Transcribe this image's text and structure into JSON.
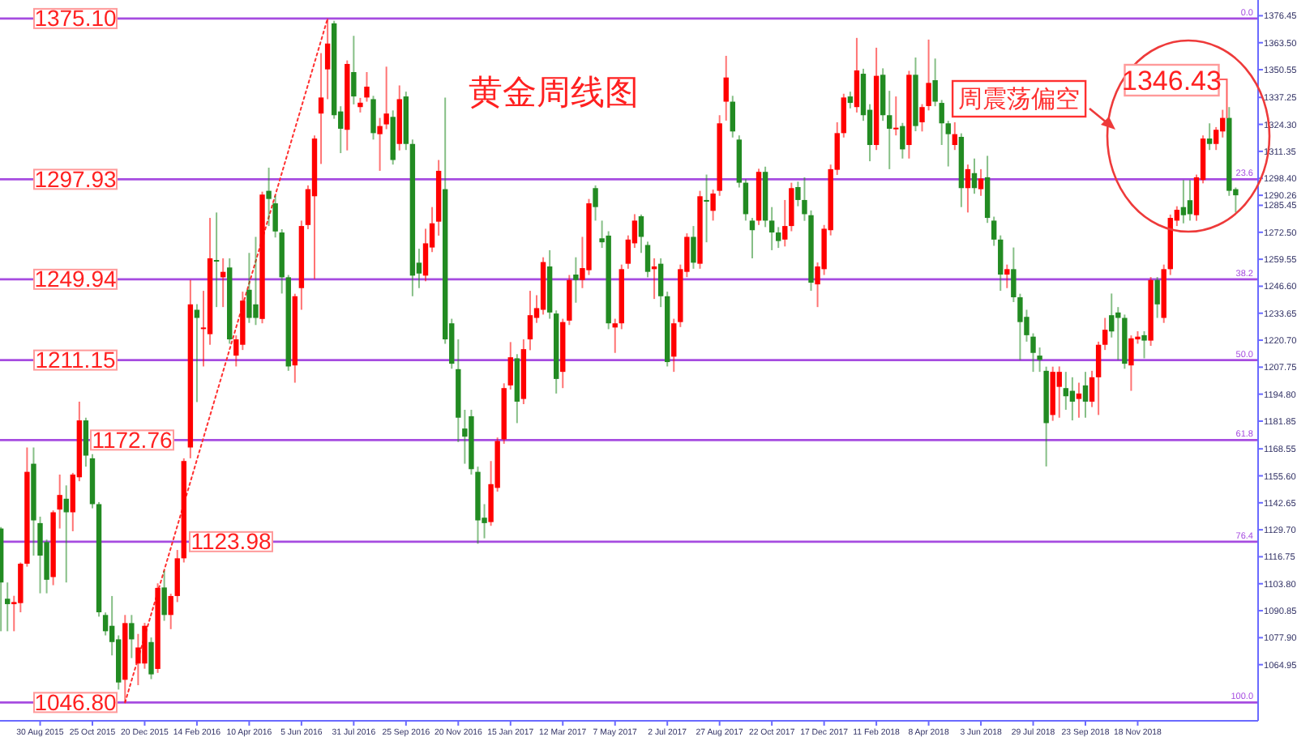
{
  "chart_data": {
    "type": "candlestick",
    "title": "黄金周线图",
    "xlim": [
      "2015-07-18",
      "2019-03-27"
    ],
    "ylim": [
      1038,
      1384
    ],
    "xticks": [
      {
        "value": "2015-08-30",
        "label": "30 Aug 2015"
      },
      {
        "value": "2015-10-25",
        "label": "25 Oct 2015"
      },
      {
        "value": "2015-12-20",
        "label": "20 Dec 2015"
      },
      {
        "value": "2016-02-14",
        "label": "14 Feb 2016"
      },
      {
        "value": "2016-04-10",
        "label": "10 Apr 2016"
      },
      {
        "value": "2016-06-05",
        "label": "5 Jun 2016"
      },
      {
        "value": "2016-07-31",
        "label": "31 Jul 2016"
      },
      {
        "value": "2016-09-25",
        "label": "25 Sep 2016"
      },
      {
        "value": "2016-11-20",
        "label": "20 Nov 2016"
      },
      {
        "value": "2017-01-15",
        "label": "15 Jan 2017"
      },
      {
        "value": "2017-03-12",
        "label": "12 Mar 2017"
      },
      {
        "value": "2017-05-07",
        "label": "7 May 2017"
      },
      {
        "value": "2017-07-02",
        "label": "2 Jul 2017"
      },
      {
        "value": "2017-08-27",
        "label": "27 Aug 2017"
      },
      {
        "value": "2017-10-22",
        "label": "22 Oct 2017"
      },
      {
        "value": "2017-12-17",
        "label": "17 Dec 2017"
      },
      {
        "value": "2018-02-11",
        "label": "11 Feb 2018"
      },
      {
        "value": "2018-04-08",
        "label": "8 Apr 2018"
      },
      {
        "value": "2018-06-03",
        "label": "3 Jun 2018"
      },
      {
        "value": "2018-07-29",
        "label": "29 Jul 2018"
      },
      {
        "value": "2018-09-23",
        "label": "23 Sep 2018"
      },
      {
        "value": "2018-11-18",
        "label": "18 Nov 2018"
      }
    ],
    "yticks": [
      {
        "value": 1376.45,
        "label": "1376.45"
      },
      {
        "value": 1363.5,
        "label": "1363.50"
      },
      {
        "value": 1350.55,
        "label": "1350.55"
      },
      {
        "value": 1337.25,
        "label": "1337.25"
      },
      {
        "value": 1324.3,
        "label": "1324.30"
      },
      {
        "value": 1311.35,
        "label": "1311.35"
      },
      {
        "value": 1298.4,
        "label": "1298.40"
      },
      {
        "value": 1290.26,
        "label": "1290.26"
      },
      {
        "value": 1285.45,
        "label": "1285.45"
      },
      {
        "value": 1272.5,
        "label": "1272.50"
      },
      {
        "value": 1259.55,
        "label": "1259.55"
      },
      {
        "value": 1246.6,
        "label": "1246.60"
      },
      {
        "value": 1233.65,
        "label": "1233.65"
      },
      {
        "value": 1220.7,
        "label": "1220.70"
      },
      {
        "value": 1207.75,
        "label": "1207.75"
      },
      {
        "value": 1194.8,
        "label": "1194.80"
      },
      {
        "value": 1181.85,
        "label": "1181.85"
      },
      {
        "value": 1168.55,
        "label": "1168.55"
      },
      {
        "value": 1155.6,
        "label": "1155.60"
      },
      {
        "value": 1142.65,
        "label": "1142.65"
      },
      {
        "value": 1129.7,
        "label": "1129.70"
      },
      {
        "value": 1116.75,
        "label": "1116.75"
      },
      {
        "value": 1103.8,
        "label": "1103.80"
      },
      {
        "value": 1090.85,
        "label": "1090.85"
      },
      {
        "value": 1077.9,
        "label": "1077.90"
      },
      {
        "value": 1064.95,
        "label": "1064.95"
      }
    ],
    "ref_lines": [
      {
        "axis": "y",
        "value": 1375.1,
        "label": "1375.10",
        "color": "#a64ce0"
      },
      {
        "axis": "y",
        "value": 1297.93,
        "label": "1297.93",
        "color": "#a64ce0"
      },
      {
        "axis": "y",
        "value": 1249.94,
        "label": "1249.94",
        "color": "#a64ce0"
      },
      {
        "axis": "y",
        "value": 1211.15,
        "label": "1211.15",
        "color": "#a64ce0"
      },
      {
        "axis": "y",
        "value": 1172.76,
        "label": "1172.76",
        "color": "#a64ce0"
      },
      {
        "axis": "y",
        "value": 1123.98,
        "label": "1123.98",
        "color": "#a64ce0"
      },
      {
        "axis": "y",
        "value": 1046.8,
        "label": "1046.80",
        "color": "#a64ce0"
      }
    ],
    "annotations": [
      "周震荡偏空",
      "1346.43",
      "0.0",
      "23.6",
      "38.2",
      "50.0",
      "61.8",
      "76.4",
      "100.0"
    ],
    "series": [
      {
        "type": "line",
        "x": [
          "2015-11-29",
          "2016-07-03"
        ],
        "values": [
          1046.8,
          1375.1
        ],
        "color": "#ff3030",
        "line_style": "dotted"
      },
      {
        "colors": [
          "#228b22",
          "#228b22",
          "#ff0000",
          "#ff0000",
          "#ff0000",
          "#228b22",
          "#228b22",
          "#228b22",
          "#ff0000",
          "#ff0000",
          "#228b22",
          "#ff0000",
          "#ff0000",
          "#228b22",
          "#228b22",
          "#228b22",
          "#228b22",
          "#228b22",
          "#228b22",
          "#ff0000",
          "#228b22",
          "#ff0000",
          "#ff0000",
          "#228b22",
          "#ff0000",
          "#228b22",
          "#ff0000",
          "#ff0000",
          "#ff0000",
          "#ff0000",
          "#228b22",
          "#ff0000",
          "#ff0000",
          "#228b22",
          "#ff0000",
          "#228b22",
          "#ff0000",
          "#ff0000",
          "#228b22",
          "#228b22",
          "#ff0000",
          "#228b22",
          "#228b22",
          "#228b22",
          "#228b22",
          "#ff0000",
          "#ff0000",
          "#ff0000",
          "#ff0000",
          "#ff0000",
          "#ff0000",
          "#228b22",
          "#228b22",
          "#ff0000",
          "#228b22",
          "#ff0000",
          "#ff0000",
          "#228b22",
          "#ff0000",
          "#ff0000",
          "#228b22",
          "#ff0000",
          "#228b22",
          "#228b22",
          "#228b22",
          "#ff0000",
          "#ff0000",
          "#ff0000",
          "#228b22",
          "#228b22",
          "#228b22",
          "#228b22",
          "#228b22",
          "#228b22",
          "#228b22",
          "#ff0000",
          "#ff0000",
          "#ff0000",
          "#ff0000",
          "#228b22",
          "#ff0000",
          "#ff0000",
          "#ff0000",
          "#ff0000",
          "#228b22",
          "#228b22",
          "#ff0000",
          "#ff0000",
          "#228b22",
          "#ff0000",
          "#ff0000",
          "#228b22",
          "#228b22",
          "#228b22",
          "#ff0000",
          "#ff0000",
          "#ff0000",
          "#ff0000",
          "#228b22",
          "#228b22",
          "#ff0000",
          "#228b22",
          "#228b22",
          "#ff0000",
          "#ff0000",
          "#ff0000",
          "#228b22",
          "#ff0000",
          "#228b22",
          "#ff0000",
          "#ff0000",
          "#ff0000",
          "#228b22",
          "#228b22",
          "#228b22",
          "#228b22",
          "#ff0000",
          "#228b22",
          "#228b22",
          "#228b22",
          "#ff0000",
          "#ff0000",
          "#228b22",
          "#228b22",
          "#228b22",
          "#ff0000",
          "#ff0000",
          "#ff0000",
          "#ff0000",
          "#ff0000",
          "#228b22",
          "#ff0000",
          "#228b22",
          "#228b22",
          "#ff0000",
          "#228b22",
          "#228b22",
          "#ff0000",
          "#228b22",
          "#ff0000",
          "#228b22",
          "#ff0000",
          "#ff0000",
          "#228b22",
          "#228b22",
          "#228b22",
          "#ff0000",
          "#228b22",
          "#ff0000",
          "#228b22",
          "#ff0000",
          "#228b22",
          "#228b22",
          "#228b22",
          "#ff0000",
          "#228b22",
          "#228b22",
          "#228b22",
          "#228b22",
          "#228b22",
          "#228b22",
          "#ff0000",
          "#ff0000",
          "#228b22",
          "#228b22",
          "#ff0000",
          "#228b22",
          "#ff0000",
          "#ff0000",
          "#ff0000",
          "#228b22",
          "#228b22",
          "#228b22",
          "#ff0000",
          "#ff0000",
          "#228b22",
          "#ff0000",
          "#228b22",
          "#ff0000",
          "#ff0000",
          "#ff0000",
          "#228b22",
          "#228b22",
          "#ff0000",
          "#ff0000",
          "#228b22",
          "#ff0000",
          "#ff0000",
          "#228b22",
          "#228b22"
        ],
        "x": [
          "2015-07-19",
          "2015-07-26",
          "2015-08-02",
          "2015-08-09",
          "2015-08-16",
          "2015-08-23",
          "2015-08-30",
          "2015-09-06",
          "2015-09-13",
          "2015-09-20",
          "2015-09-27",
          "2015-10-04",
          "2015-10-11",
          "2015-10-18",
          "2015-10-25",
          "2015-11-01",
          "2015-11-08",
          "2015-11-15",
          "2015-11-22",
          "2015-11-29",
          "2015-12-06",
          "2015-12-13",
          "2015-12-20",
          "2015-12-27",
          "2016-01-03",
          "2016-01-10",
          "2016-01-17",
          "2016-01-24",
          "2016-01-31",
          "2016-02-07",
          "2016-02-14",
          "2016-02-21",
          "2016-02-28",
          "2016-03-06",
          "2016-03-13",
          "2016-03-20",
          "2016-03-27",
          "2016-04-03",
          "2016-04-10",
          "2016-04-17",
          "2016-04-24",
          "2016-05-01",
          "2016-05-08",
          "2016-05-15",
          "2016-05-22",
          "2016-05-29",
          "2016-06-05",
          "2016-06-12",
          "2016-06-19",
          "2016-06-26",
          "2016-07-03",
          "2016-07-10",
          "2016-07-17",
          "2016-07-24",
          "2016-07-31",
          "2016-08-07",
          "2016-08-14",
          "2016-08-21",
          "2016-08-28",
          "2016-09-04",
          "2016-09-11",
          "2016-09-18",
          "2016-09-25",
          "2016-10-02",
          "2016-10-09",
          "2016-10-16",
          "2016-10-23",
          "2016-10-30",
          "2016-11-06",
          "2016-11-13",
          "2016-11-20",
          "2016-11-27",
          "2016-12-04",
          "2016-12-11",
          "2016-12-18",
          "2016-12-25",
          "2017-01-01",
          "2017-01-08",
          "2017-01-15",
          "2017-01-22",
          "2017-01-29",
          "2017-02-05",
          "2017-02-12",
          "2017-02-19",
          "2017-02-26",
          "2017-03-05",
          "2017-03-12",
          "2017-03-19",
          "2017-03-26",
          "2017-04-02",
          "2017-04-09",
          "2017-04-16",
          "2017-04-23",
          "2017-04-30",
          "2017-05-07",
          "2017-05-14",
          "2017-05-21",
          "2017-05-28",
          "2017-06-04",
          "2017-06-11",
          "2017-06-18",
          "2017-06-25",
          "2017-07-02",
          "2017-07-09",
          "2017-07-16",
          "2017-07-23",
          "2017-07-30",
          "2017-08-06",
          "2017-08-13",
          "2017-08-20",
          "2017-08-27",
          "2017-09-03",
          "2017-09-10",
          "2017-09-17",
          "2017-09-24",
          "2017-10-01",
          "2017-10-08",
          "2017-10-15",
          "2017-10-22",
          "2017-10-29",
          "2017-11-05",
          "2017-11-12",
          "2017-11-19",
          "2017-11-26",
          "2017-12-03",
          "2017-12-10",
          "2017-12-17",
          "2017-12-24",
          "2017-12-31",
          "2018-01-07",
          "2018-01-14",
          "2018-01-21",
          "2018-01-28",
          "2018-02-04",
          "2018-02-11",
          "2018-02-18",
          "2018-02-25",
          "2018-03-04",
          "2018-03-11",
          "2018-03-18",
          "2018-03-25",
          "2018-04-01",
          "2018-04-08",
          "2018-04-15",
          "2018-04-22",
          "2018-04-29",
          "2018-05-06",
          "2018-05-13",
          "2018-05-20",
          "2018-05-27",
          "2018-06-03",
          "2018-06-10",
          "2018-06-17",
          "2018-06-24",
          "2018-07-01",
          "2018-07-08",
          "2018-07-15",
          "2018-07-22",
          "2018-07-29",
          "2018-08-05",
          "2018-08-12",
          "2018-08-19",
          "2018-08-26",
          "2018-09-02",
          "2018-09-09",
          "2018-09-16",
          "2018-09-23",
          "2018-09-30",
          "2018-10-07",
          "2018-10-14",
          "2018-10-21",
          "2018-10-28",
          "2018-11-04",
          "2018-11-11",
          "2018-11-18",
          "2018-11-25",
          "2018-12-02",
          "2018-12-09",
          "2018-12-16",
          "2018-12-23",
          "2018-12-30",
          "2019-01-06",
          "2019-01-13",
          "2019-01-20",
          "2019-01-27",
          "2019-02-03",
          "2019-02-10",
          "2019-02-17",
          "2019-02-24",
          "2019-03-03"
        ],
        "ohlc": [
          [
            1130.3,
            1131,
            1081,
            1104.4
          ],
          [
            1096.6,
            1104.4,
            1081,
            1094
          ],
          [
            1094,
            1098,
            1081,
            1095
          ],
          [
            1094.5,
            1114,
            1090.1,
            1113.4
          ],
          [
            1113.4,
            1169.2,
            1112,
            1157.5
          ],
          [
            1161.4,
            1169.2,
            1117.3,
            1134.2
          ],
          [
            1132.9,
            1136,
            1099.2,
            1117.3
          ],
          [
            1123.8,
            1125,
            1099.2,
            1105.7
          ],
          [
            1107,
            1139,
            1103.1,
            1138.1
          ],
          [
            1139.4,
            1156.2,
            1130.3,
            1146.4
          ],
          [
            1144.6,
            1151,
            1104.4,
            1138.1
          ],
          [
            1138.1,
            1157,
            1129,
            1156.2
          ],
          [
            1154.9,
            1191.2,
            1153,
            1182.2
          ],
          [
            1182.2,
            1183.5,
            1160,
            1165.3
          ],
          [
            1164,
            1166,
            1140,
            1142
          ],
          [
            1142,
            1143,
            1088,
            1090.1
          ],
          [
            1088.8,
            1090,
            1079,
            1081
          ],
          [
            1083.6,
            1097.9,
            1069.4,
            1075.8
          ],
          [
            1077.1,
            1079,
            1053,
            1056.4
          ],
          [
            1057.7,
            1088.8,
            1046.8,
            1084.9
          ],
          [
            1084.9,
            1088.8,
            1068.1,
            1077.1
          ],
          [
            1065.5,
            1079.7,
            1055.1,
            1073.2
          ],
          [
            1065.5,
            1085,
            1063,
            1083.6
          ],
          [
            1075.8,
            1078,
            1058,
            1060.3
          ],
          [
            1062.9,
            1104,
            1061,
            1101.8
          ],
          [
            1102,
            1110,
            1086,
            1088.8
          ],
          [
            1088.8,
            1099,
            1082,
            1097.9
          ],
          [
            1097.9,
            1120,
            1095,
            1116
          ],
          [
            1116,
            1164,
            1114,
            1162.7
          ],
          [
            1169.2,
            1249.6,
            1164,
            1237.9
          ],
          [
            1235.3,
            1238,
            1191,
            1231.4
          ],
          [
            1226.3,
            1244.4,
            1208.1,
            1226.8
          ],
          [
            1223.6,
            1279.4,
            1218.5,
            1260
          ],
          [
            1259.2,
            1282,
            1236.6,
            1258.7
          ],
          [
            1250.9,
            1260,
            1236.6,
            1253.5
          ],
          [
            1255.6,
            1260,
            1219,
            1221.1
          ],
          [
            1213.3,
            1223,
            1208.1,
            1221.1
          ],
          [
            1218.5,
            1244,
            1216,
            1239.7
          ],
          [
            1244.9,
            1262.6,
            1229,
            1231.4
          ],
          [
            1237.9,
            1270.3,
            1228,
            1231.4
          ],
          [
            1230.9,
            1292,
            1228.8,
            1290.6
          ],
          [
            1292.4,
            1303.5,
            1275.5,
            1288.5
          ],
          [
            1286.4,
            1290,
            1270,
            1272.9
          ],
          [
            1272.4,
            1274,
            1243.1,
            1250.9
          ],
          [
            1250.9,
            1252,
            1206,
            1208.1
          ],
          [
            1208.6,
            1243,
            1200.3,
            1241.8
          ],
          [
            1245.7,
            1278.1,
            1235.3,
            1275.5
          ],
          [
            1276,
            1295,
            1274,
            1293.2
          ],
          [
            1289.8,
            1319,
            1250.1,
            1317.5
          ],
          [
            1329.5,
            1358.5,
            1305.3,
            1337.2
          ],
          [
            1350.7,
            1375.1,
            1336.4,
            1363.1
          ],
          [
            1372.8,
            1374,
            1327,
            1328.7
          ],
          [
            1330.5,
            1333,
            1310.5,
            1322.2
          ],
          [
            1321.7,
            1355,
            1311.8,
            1353.3
          ],
          [
            1349.4,
            1366.8,
            1333.9,
            1337.7
          ],
          [
            1332.6,
            1337,
            1330,
            1334.7
          ],
          [
            1337.2,
            1349.4,
            1335.2,
            1342.4
          ],
          [
            1336.4,
            1338,
            1317,
            1320.1
          ],
          [
            1319.6,
            1327.4,
            1302,
            1323.5
          ],
          [
            1324.3,
            1352,
            1322,
            1329.5
          ],
          [
            1327.9,
            1331,
            1305,
            1307.2
          ],
          [
            1314.9,
            1343,
            1311.8,
            1336.4
          ],
          [
            1337.7,
            1340,
            1312,
            1314.9
          ],
          [
            1314.9,
            1317,
            1241.8,
            1251.7
          ],
          [
            1257.9,
            1264.6,
            1245.7,
            1252.7
          ],
          [
            1251.7,
            1274.2,
            1249,
            1267.2
          ],
          [
            1265.2,
            1284.6,
            1263,
            1276.8
          ],
          [
            1277.6,
            1307.2,
            1270.9,
            1302
          ],
          [
            1293.2,
            1337.2,
            1219,
            1221.1
          ],
          [
            1228.8,
            1231,
            1207,
            1209.4
          ],
          [
            1206.8,
            1221.1,
            1171.8,
            1183.5
          ],
          [
            1178.3,
            1187.3,
            1161.4,
            1174.4
          ],
          [
            1184.2,
            1187.3,
            1156.2,
            1158.8
          ],
          [
            1157.5,
            1160,
            1123,
            1134.2
          ],
          [
            1135.5,
            1142,
            1125.6,
            1132.9
          ],
          [
            1133.4,
            1162.7,
            1131.6,
            1151.6
          ],
          [
            1149.8,
            1174,
            1148,
            1172.3
          ],
          [
            1173.1,
            1200,
            1171,
            1197.7
          ],
          [
            1199,
            1219.8,
            1197,
            1212.5
          ],
          [
            1212,
            1214,
            1180.9,
            1191.2
          ],
          [
            1192.5,
            1221.1,
            1190,
            1216.4
          ],
          [
            1221.1,
            1244.4,
            1215.9,
            1232.7
          ],
          [
            1231.4,
            1242.3,
            1229,
            1236.1
          ],
          [
            1235.3,
            1260.5,
            1233,
            1258.2
          ],
          [
            1256.1,
            1263.9,
            1231,
            1234
          ],
          [
            1233.5,
            1235,
            1195.1,
            1202.1
          ],
          [
            1205.5,
            1231,
            1197.7,
            1229.4
          ],
          [
            1230.1,
            1252,
            1228,
            1249.6
          ],
          [
            1252.2,
            1260.5,
            1238.7,
            1249.6
          ],
          [
            1249.6,
            1270.3,
            1245.7,
            1255.3
          ],
          [
            1254.3,
            1288.5,
            1252,
            1286.4
          ],
          [
            1293.7,
            1295,
            1278.1,
            1284.6
          ],
          [
            1269.6,
            1278.1,
            1265,
            1267.7
          ],
          [
            1270.9,
            1273,
            1226,
            1228.8
          ],
          [
            1226.8,
            1231,
            1214.6,
            1228.8
          ],
          [
            1228.8,
            1257,
            1226,
            1254.8
          ],
          [
            1257.4,
            1271,
            1255,
            1269
          ],
          [
            1267.2,
            1281.2,
            1265,
            1278.1
          ],
          [
            1280.2,
            1281,
            1262.6,
            1270.3
          ],
          [
            1266.4,
            1268,
            1250.9,
            1253.5
          ],
          [
            1254.8,
            1260,
            1240.5,
            1256.1
          ],
          [
            1257.4,
            1260,
            1236.6,
            1241.8
          ],
          [
            1241.8,
            1244,
            1208.1,
            1210.2
          ],
          [
            1212.8,
            1231,
            1205.5,
            1228.8
          ],
          [
            1229.4,
            1257,
            1227,
            1254.8
          ],
          [
            1253.5,
            1272,
            1251,
            1270.3
          ],
          [
            1270.3,
            1275.5,
            1255,
            1257.9
          ],
          [
            1257.4,
            1292.4,
            1255,
            1289.8
          ],
          [
            1288,
            1300.2,
            1267.7,
            1287.2
          ],
          [
            1282.8,
            1293,
            1278.1,
            1291.1
          ],
          [
            1292.4,
            1328.7,
            1290,
            1324.8
          ],
          [
            1335.2,
            1357.2,
            1326.1,
            1346.8
          ],
          [
            1335.2,
            1338,
            1318,
            1320.9
          ],
          [
            1317,
            1319,
            1294,
            1296.3
          ],
          [
            1296.3,
            1298,
            1278.1,
            1281.2
          ],
          [
            1278.1,
            1279.4,
            1260,
            1273.5
          ],
          [
            1278.1,
            1303,
            1276,
            1301.5
          ],
          [
            1301.5,
            1304,
            1275,
            1278.1
          ],
          [
            1278.1,
            1284.6,
            1263.9,
            1272.4
          ],
          [
            1272.4,
            1275,
            1265,
            1268.3
          ],
          [
            1269,
            1288,
            1265.7,
            1275.5
          ],
          [
            1275.5,
            1296.3,
            1273,
            1293.7
          ],
          [
            1294.2,
            1296.8,
            1285,
            1288
          ],
          [
            1288,
            1298.9,
            1278,
            1281.2
          ],
          [
            1280.7,
            1283,
            1244.4,
            1248.3
          ],
          [
            1247.5,
            1258,
            1236.6,
            1256.1
          ],
          [
            1254.8,
            1276,
            1252,
            1274.2
          ],
          [
            1273.5,
            1305,
            1271,
            1302.8
          ],
          [
            1302.5,
            1325.3,
            1300,
            1320.1
          ],
          [
            1320.1,
            1339,
            1318,
            1337.2
          ],
          [
            1337.7,
            1340,
            1332,
            1334.6
          ],
          [
            1332.6,
            1365.8,
            1330,
            1350.2
          ],
          [
            1348.6,
            1351,
            1326,
            1328.7
          ],
          [
            1331.3,
            1334,
            1306.6,
            1314.4
          ],
          [
            1314.4,
            1361.1,
            1312,
            1347.6
          ],
          [
            1348.1,
            1351.2,
            1326,
            1328.7
          ],
          [
            1328.7,
            1340.4,
            1302.8,
            1322.2
          ],
          [
            1322.2,
            1337.7,
            1319,
            1322.7
          ],
          [
            1323.5,
            1325,
            1307.9,
            1312.3
          ],
          [
            1314.4,
            1350,
            1307.9,
            1348.1
          ],
          [
            1348.1,
            1356.4,
            1321,
            1323.5
          ],
          [
            1325.3,
            1334,
            1320.9,
            1332.6
          ],
          [
            1333.1,
            1365,
            1331,
            1344.2
          ],
          [
            1345.5,
            1355.9,
            1333,
            1335.2
          ],
          [
            1334.6,
            1336,
            1314.4,
            1324.8
          ],
          [
            1324.8,
            1326,
            1304.1,
            1319.6
          ],
          [
            1314.4,
            1325.3,
            1312,
            1319.6
          ],
          [
            1318.3,
            1320,
            1284.6,
            1293.7
          ],
          [
            1293.7,
            1305,
            1282,
            1302.8
          ],
          [
            1300.9,
            1307.9,
            1291,
            1293.7
          ],
          [
            1293.2,
            1302.8,
            1290,
            1298.3
          ],
          [
            1298.9,
            1309.2,
            1277,
            1279.4
          ],
          [
            1278.1,
            1280,
            1266,
            1269
          ],
          [
            1269,
            1271,
            1244.4,
            1252.2
          ],
          [
            1252.2,
            1257,
            1245.7,
            1254.8
          ],
          [
            1254.8,
            1265.2,
            1239,
            1241.3
          ],
          [
            1241.3,
            1243,
            1211.2,
            1229.4
          ],
          [
            1231.9,
            1235.3,
            1220,
            1223.1
          ],
          [
            1222.4,
            1224,
            1205.5,
            1214.6
          ],
          [
            1213.3,
            1217.2,
            1205.5,
            1211.2
          ],
          [
            1206,
            1208,
            1160.1,
            1180.9
          ],
          [
            1184.8,
            1208,
            1182,
            1205.5
          ],
          [
            1198.3,
            1208.1,
            1183.5,
            1205.5
          ],
          [
            1197.7,
            1205.5,
            1187.3,
            1193.8
          ],
          [
            1196.4,
            1202.9,
            1182.2,
            1191.2
          ],
          [
            1192.5,
            1200.3,
            1183.5,
            1195.1
          ],
          [
            1199,
            1205.5,
            1183.5,
            1191.2
          ],
          [
            1191.2,
            1206,
            1188.6,
            1202.9
          ],
          [
            1202.9,
            1220,
            1184.8,
            1218.5
          ],
          [
            1218.5,
            1231.4,
            1216,
            1225.7
          ],
          [
            1232.7,
            1243.1,
            1222,
            1224.9
          ],
          [
            1234,
            1236.6,
            1211.2,
            1231.4
          ],
          [
            1231.4,
            1233,
            1207,
            1209.4
          ],
          [
            1208.6,
            1223,
            1196.4,
            1221.6
          ],
          [
            1221.1,
            1225,
            1219,
            1222.4
          ],
          [
            1223.1,
            1225,
            1212,
            1220.5
          ],
          [
            1220.5,
            1251,
            1218,
            1249.6
          ],
          [
            1249.6,
            1251,
            1231.4,
            1237.9
          ],
          [
            1231.4,
            1257,
            1229,
            1254.8
          ],
          [
            1254.8,
            1281,
            1252,
            1279.4
          ],
          [
            1278.1,
            1285,
            1275.5,
            1283.3
          ],
          [
            1284.6,
            1297.6,
            1276.8,
            1280.7
          ],
          [
            1287.9,
            1297.6,
            1278.1,
            1281.2
          ],
          [
            1280.7,
            1300.2,
            1278,
            1298.9
          ],
          [
            1297.6,
            1319,
            1296,
            1317.5
          ],
          [
            1317.5,
            1324.8,
            1312,
            1314.9
          ],
          [
            1314.9,
            1323,
            1312,
            1321.7
          ],
          [
            1320.9,
            1331.3,
            1318,
            1327.4
          ],
          [
            1327.4,
            1332.6,
            1290,
            1292.4
          ],
          [
            1293.2,
            1294,
            1282,
            1290.26
          ]
        ]
      }
    ]
  }
}
